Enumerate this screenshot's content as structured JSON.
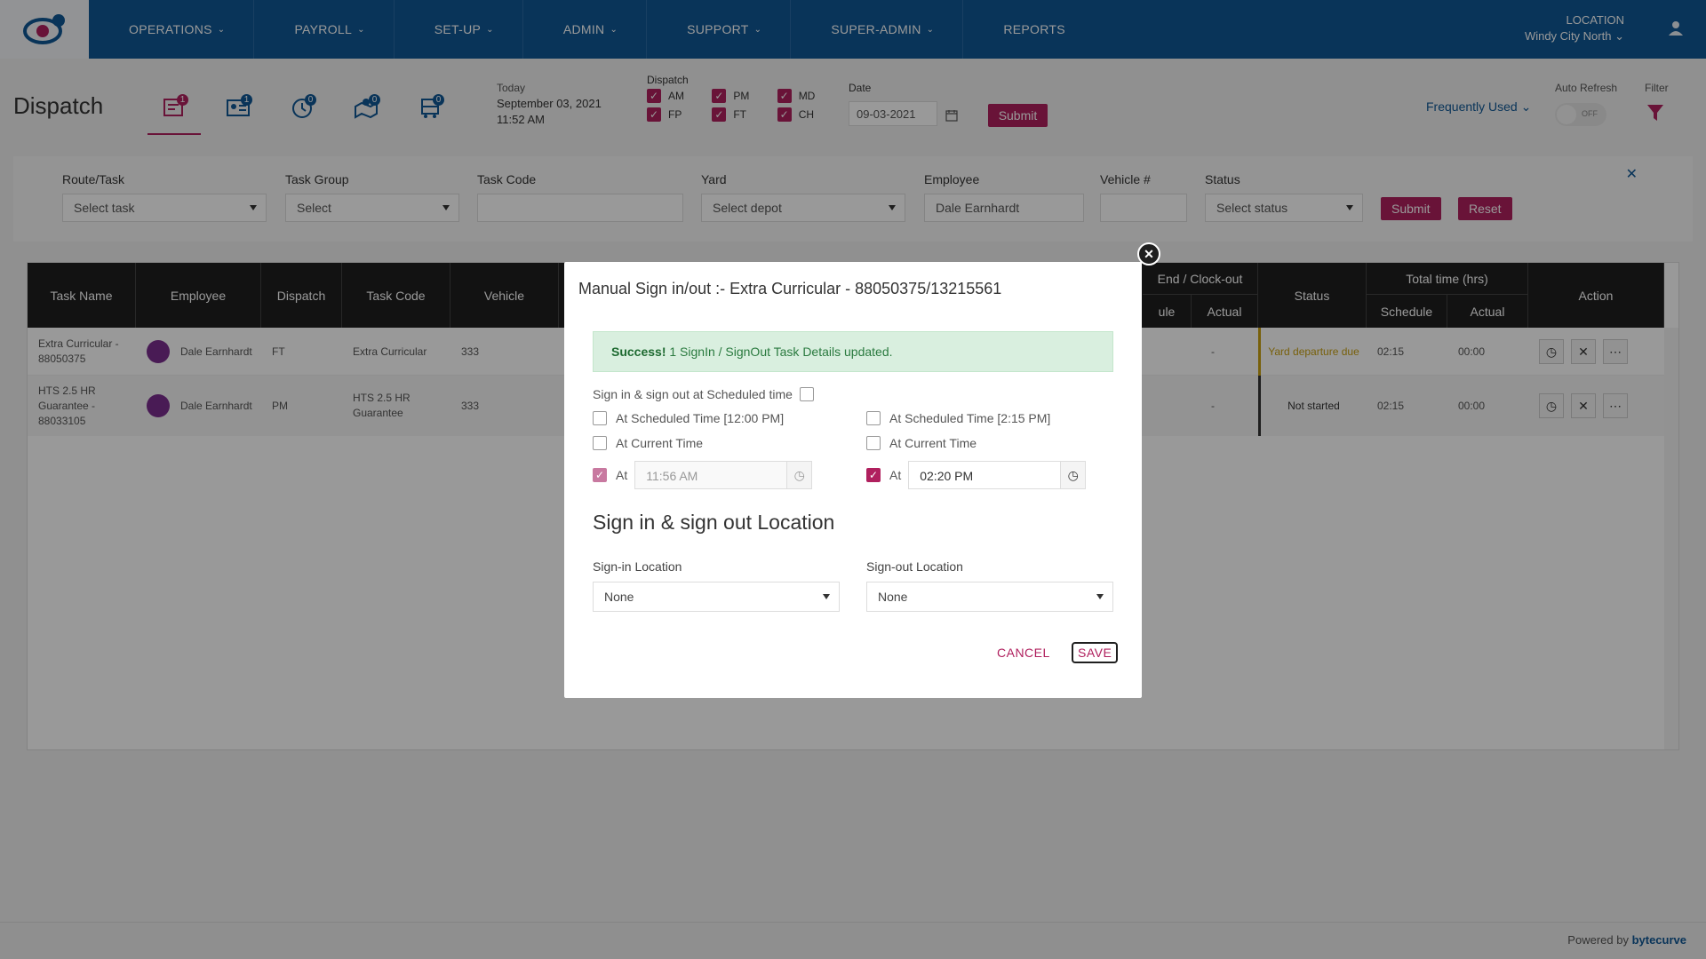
{
  "nav": {
    "items": [
      {
        "label": "OPERATIONS",
        "chevron": true
      },
      {
        "label": "PAYROLL",
        "chevron": true
      },
      {
        "label": "SET-UP",
        "chevron": true
      },
      {
        "label": "ADMIN",
        "chevron": true
      },
      {
        "label": "SUPPORT",
        "chevron": true
      },
      {
        "label": "SUPER-ADMIN",
        "chevron": true
      },
      {
        "label": "REPORTS",
        "chevron": false
      }
    ],
    "location_label": "LOCATION",
    "location_value": "Windy City North"
  },
  "header": {
    "title": "Dispatch",
    "tab_badges": [
      "1",
      "1",
      "0",
      "0",
      "0"
    ],
    "today_label": "Today",
    "today_date": "September 03, 2021",
    "today_time": "11:52 AM",
    "dispatch_label": "Dispatch",
    "dispatch_options": [
      "AM",
      "PM",
      "MD",
      "FP",
      "FT",
      "CH"
    ],
    "date_label": "Date",
    "date_value": "09-03-2021",
    "submit": "Submit",
    "frequently_used": "Frequently Used",
    "auto_refresh_label": "Auto Refresh",
    "auto_refresh_state": "OFF",
    "filter_label": "Filter"
  },
  "filters": {
    "route_label": "Route/Task",
    "route_value": "Select task",
    "group_label": "Task Group",
    "group_value": "Select",
    "code_label": "Task Code",
    "code_value": "",
    "yard_label": "Yard",
    "yard_value": "Select depot",
    "employee_label": "Employee",
    "employee_value": "Dale Earnhardt",
    "vehicle_label": "Vehicle #",
    "vehicle_value": "",
    "status_label": "Status",
    "status_value": "Select status",
    "submit": "Submit",
    "reset": "Reset"
  },
  "table": {
    "headers": {
      "task_name": "Task Name",
      "employee": "Employee",
      "dispatch": "Dispatch",
      "task_code": "Task Code",
      "vehicle": "Vehicle",
      "end_clock_out": "End / Clock-out",
      "schedule_partial": "ule",
      "actual": "Actual",
      "status": "Status",
      "total_time": "Total time (hrs)",
      "schedule": "Schedule",
      "actual2": "Actual",
      "action": "Action"
    },
    "rows": [
      {
        "task_name": "Extra Curricular - 88050375",
        "employee": "Dale Earnhardt",
        "dispatch": "FT",
        "task_code": "Extra Curricular",
        "vehicle": "333",
        "actual": "-",
        "status": "Yard departure due",
        "status_color": "#c8a012",
        "schedule": "02:15",
        "total_actual": "00:00"
      },
      {
        "task_name": "HTS 2.5 HR Guarantee - 88033105",
        "employee": "Dale Earnhardt",
        "dispatch": "PM",
        "task_code": "HTS 2.5 HR Guarantee",
        "vehicle": "333",
        "actual": "-",
        "status": "Not started",
        "status_color": "#333333",
        "schedule": "02:15",
        "total_actual": "00:00"
      }
    ]
  },
  "modal": {
    "title": "Manual Sign in/out :- Extra Curricular - 88050375/13215561",
    "alert_strong": "Success!",
    "alert_text": " 1 SignIn / SignOut Task Details updated.",
    "scheduled_toggle_label": "Sign in & sign out at Scheduled time",
    "in_scheduled": "At Scheduled Time [12:00 PM]",
    "out_scheduled": "At Scheduled Time [2:15 PM]",
    "in_current": "At Current Time",
    "out_current": "At Current Time",
    "at_label": "At",
    "in_time": "11:56 AM",
    "out_time": "02:20 PM",
    "section_title": "Sign in & sign out Location",
    "signin_label": "Sign-in Location",
    "signin_value": "None",
    "signout_label": "Sign-out Location",
    "signout_value": "None",
    "cancel": "CANCEL",
    "save": "SAVE"
  },
  "footer": {
    "powered_by": "Powered by",
    "brand": "bytecurve"
  }
}
